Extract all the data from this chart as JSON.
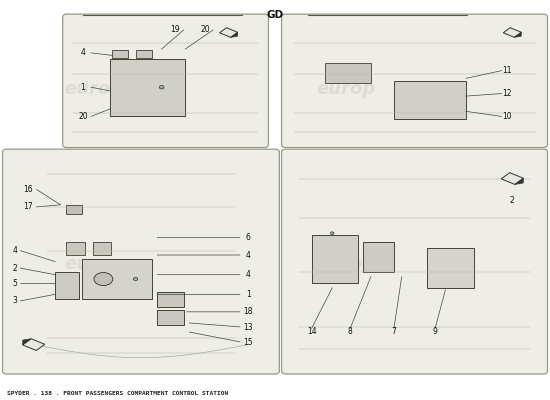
{
  "title": "SPYDER . 138 . FRONT PASSENGERS COMPARTMENT CONTROL STATION",
  "background_color": "#ffffff",
  "panel_bg": "#eeede6",
  "border_color": "#999988",
  "line_color": "#333333",
  "text_color": "#222222",
  "watermark_color": "#d0d0d0",
  "watermark_text": "europ",
  "footer_text": "GD",
  "arrow_color": "#333333",
  "panels": {
    "tl": [
      0.01,
      0.07,
      0.49,
      0.55
    ],
    "tr": [
      0.52,
      0.07,
      0.47,
      0.55
    ],
    "bl": [
      0.12,
      0.64,
      0.36,
      0.32
    ],
    "br": [
      0.52,
      0.64,
      0.47,
      0.32
    ]
  }
}
